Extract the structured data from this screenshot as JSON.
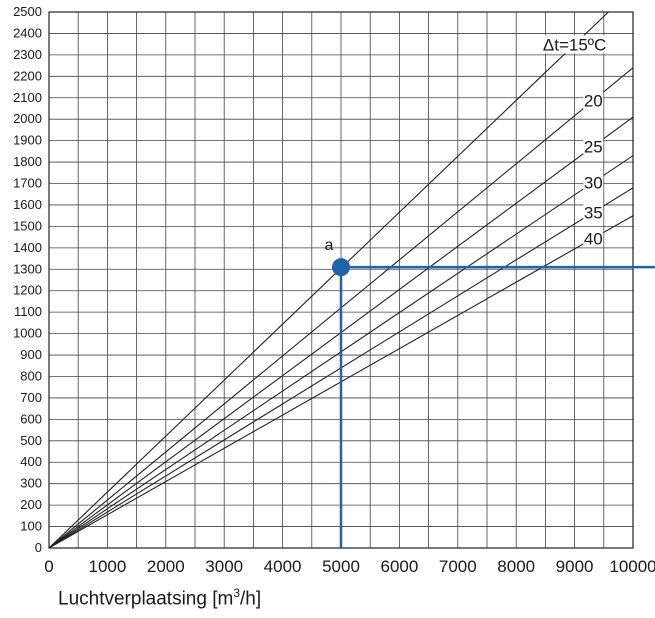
{
  "chart_data": {
    "type": "line",
    "title": "",
    "xlabel": {
      "prefix": "Luchtverplaatsing [m",
      "sup": "3",
      "suffix": "/h]"
    },
    "ylabel": "",
    "xlim": [
      0,
      10000
    ],
    "ylim": [
      0,
      2500
    ],
    "x_ticks": [
      "0",
      "1000",
      "2000",
      "3000",
      "4000",
      "5000",
      "6000",
      "7000",
      "8000",
      "9000",
      "10000"
    ],
    "y_ticks": [
      "0",
      "100",
      "200",
      "300",
      "400",
      "500",
      "600",
      "700",
      "800",
      "900",
      "1000",
      "1100",
      "1200",
      "1300",
      "1400",
      "1500",
      "1600",
      "1700",
      "1800",
      "1900",
      "2000",
      "2100",
      "2200",
      "2300",
      "2400",
      "2500"
    ],
    "grid": true,
    "series": [
      {
        "name": "Δt=15ºC",
        "x": [
          0,
          10000
        ],
        "y": [
          0,
          2610
        ]
      },
      {
        "name": "20",
        "x": [
          0,
          10000
        ],
        "y": [
          0,
          2240
        ]
      },
      {
        "name": "25",
        "x": [
          0,
          10000
        ],
        "y": [
          0,
          2010
        ]
      },
      {
        "name": "30",
        "x": [
          0,
          10000
        ],
        "y": [
          0,
          1830
        ]
      },
      {
        "name": "35",
        "x": [
          0,
          10000
        ],
        "y": [
          0,
          1680
        ]
      },
      {
        "name": "40",
        "x": [
          0,
          10000
        ],
        "y": [
          0,
          1550
        ]
      }
    ],
    "annotation": {
      "label": "a",
      "x": 5000,
      "y": 1310,
      "color": "#1f63a8"
    }
  }
}
